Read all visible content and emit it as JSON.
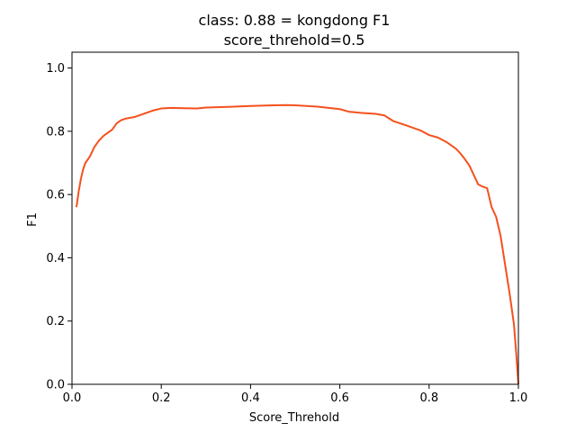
{
  "chart_data": {
    "type": "line",
    "title": "class: 0.88 = kongdong F1",
    "subtitle": "score_threhold=0.5",
    "xlabel": "Score_Threhold",
    "ylabel": "F1",
    "xlim": [
      0.0,
      1.0
    ],
    "ylim": [
      0.0,
      1.05
    ],
    "xticks": [
      "0.0",
      "0.2",
      "0.4",
      "0.6",
      "0.8",
      "1.0"
    ],
    "yticks": [
      "0.0",
      "0.2",
      "0.4",
      "0.6",
      "0.8",
      "1.0"
    ],
    "grid": false,
    "legend": "none",
    "series": [
      {
        "color": "#f4511e",
        "x": [
          0.01,
          0.015,
          0.02,
          0.025,
          0.03,
          0.04,
          0.05,
          0.06,
          0.07,
          0.08,
          0.09,
          0.1,
          0.11,
          0.12,
          0.14,
          0.16,
          0.18,
          0.2,
          0.22,
          0.25,
          0.28,
          0.3,
          0.35,
          0.4,
          0.45,
          0.48,
          0.5,
          0.55,
          0.6,
          0.62,
          0.65,
          0.68,
          0.7,
          0.72,
          0.75,
          0.78,
          0.8,
          0.82,
          0.84,
          0.86,
          0.87,
          0.88,
          0.89,
          0.9,
          0.91,
          0.92,
          0.93,
          0.94,
          0.95,
          0.96,
          0.97,
          0.98,
          0.99,
          0.995,
          1.0
        ],
        "y": [
          0.56,
          0.61,
          0.65,
          0.68,
          0.7,
          0.72,
          0.75,
          0.77,
          0.785,
          0.795,
          0.805,
          0.825,
          0.835,
          0.84,
          0.845,
          0.855,
          0.865,
          0.872,
          0.874,
          0.873,
          0.872,
          0.875,
          0.877,
          0.88,
          0.882,
          0.883,
          0.882,
          0.878,
          0.87,
          0.862,
          0.858,
          0.855,
          0.85,
          0.832,
          0.818,
          0.803,
          0.788,
          0.78,
          0.765,
          0.745,
          0.73,
          0.712,
          0.692,
          0.662,
          0.632,
          0.625,
          0.62,
          0.56,
          0.53,
          0.47,
          0.38,
          0.29,
          0.19,
          0.1,
          0.0
        ]
      }
    ]
  }
}
